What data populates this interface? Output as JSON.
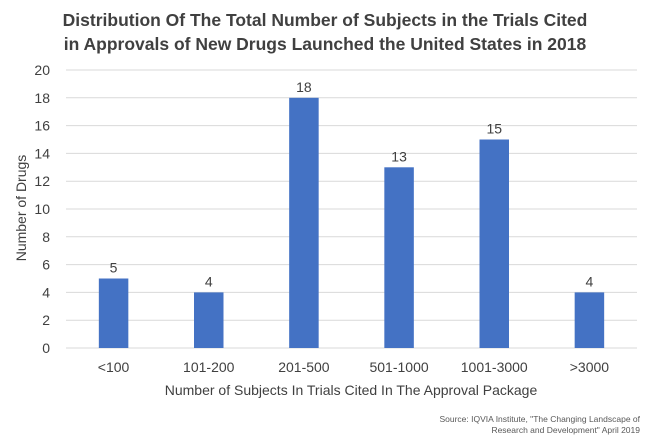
{
  "title_line1": "Distribution Of The Total Number of Subjects in the Trials Cited",
  "title_line2": "in Approvals of New Drugs Launched the United States in 2018",
  "source_line1": "Source: IQVIA Institute, \"The Changing Landscape of",
  "source_line2": "Research and Development\" April 2019",
  "colors": {
    "bar": "#4472C4",
    "grid": "#D9D9D9",
    "text": "#404040"
  },
  "chart_data": {
    "type": "bar",
    "categories": [
      "<100",
      "101-200",
      "201-500",
      "501-1000",
      "1001-3000",
      ">3000"
    ],
    "values": [
      5,
      4,
      18,
      13,
      15,
      4
    ],
    "data_labels": [
      "5",
      "4",
      "18",
      "13",
      "15",
      "4"
    ],
    "xlabel": "Number of Subjects In Trials Cited In The Approval Package",
    "ylabel": "Number of Drugs",
    "ylim": [
      0,
      20
    ],
    "yticks": [
      "0",
      "2",
      "4",
      "6",
      "8",
      "10",
      "12",
      "14",
      "16",
      "18",
      "20"
    ],
    "grid": true,
    "legend": "none"
  }
}
